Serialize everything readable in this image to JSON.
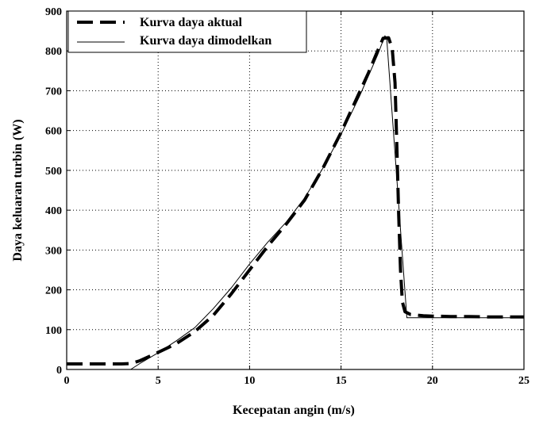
{
  "chart_data": {
    "type": "line",
    "xlabel": "Kecepatan angin (m/s)",
    "ylabel": "Daya keluaran turbin (W)",
    "xlim": [
      0,
      25
    ],
    "ylim": [
      0,
      900
    ],
    "xticks": [
      0,
      5,
      10,
      15,
      20,
      25
    ],
    "yticks": [
      0,
      100,
      200,
      300,
      400,
      500,
      600,
      700,
      800,
      900
    ],
    "xtick_labels": [
      "0",
      "5",
      "10",
      "15",
      "20",
      "25"
    ],
    "ytick_labels": [
      "0",
      "100",
      "200",
      "300",
      "400",
      "500",
      "600",
      "700",
      "800",
      "900"
    ],
    "grid": true,
    "legend_position": "top-left",
    "series": [
      {
        "name": "Kurva daya aktual",
        "style": "dashed",
        "x": [
          0,
          1,
          2,
          3,
          3.5,
          4,
          5,
          6,
          7,
          8,
          9,
          10,
          11,
          12,
          13,
          14,
          15,
          16,
          16.5,
          17,
          17.3,
          17.6,
          17.8,
          17.95,
          18.05,
          18.15,
          18.25,
          18.35,
          18.5,
          18.8,
          19.5,
          20,
          21,
          22,
          23,
          24,
          25
        ],
        "y": [
          14,
          14,
          14,
          14,
          15,
          22,
          43,
          65,
          95,
          135,
          190,
          250,
          310,
          365,
          425,
          505,
          595,
          695,
          745,
          800,
          832,
          833,
          805,
          720,
          560,
          390,
          250,
          170,
          145,
          138,
          135,
          134,
          133,
          133,
          132,
          132,
          132
        ]
      },
      {
        "name": "Kurva daya dimodelkan",
        "style": "solid",
        "x": [
          3.5,
          4,
          5,
          6,
          7,
          8,
          9,
          10,
          11,
          12,
          13,
          14,
          15,
          16,
          17,
          17.4,
          17.5,
          18.6,
          25
        ],
        "y": [
          0,
          15,
          42,
          72,
          105,
          152,
          205,
          265,
          320,
          370,
          430,
          505,
          590,
          685,
          790,
          838,
          830,
          130,
          130
        ]
      }
    ],
    "colors": {
      "line": "#000000",
      "grid": "#000000",
      "background": "#ffffff"
    }
  }
}
